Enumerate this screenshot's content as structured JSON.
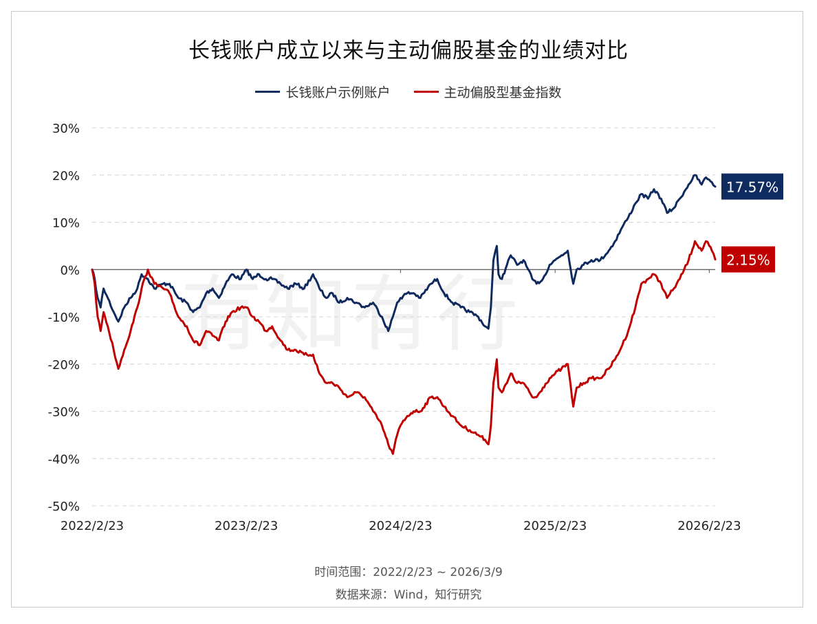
{
  "title": "长钱账户成立以来与主动偏股基金的业绩对比",
  "legend": [
    {
      "label": "长钱账户示例账户",
      "color": "#0f2a5e"
    },
    {
      "label": "主动偏股型基金指数",
      "color": "#c00000"
    }
  ],
  "footer": {
    "range": "时间范围：2022/2/23 ~ 2026/3/9",
    "source": "数据来源：Wind，知行研究"
  },
  "watermark": "有知有行",
  "chart_data": {
    "type": "line",
    "x_start": "2022/2/23",
    "x_end": "2026/3/9",
    "xticks": [
      "2022/2/23",
      "2023/2/23",
      "2024/2/23",
      "2025/2/23",
      "2026/2/23"
    ],
    "yticks": [
      "30%",
      "20%",
      "10%",
      "0%",
      "-10%",
      "-20%",
      "-30%",
      "-40%",
      "-50%"
    ],
    "ylim": [
      -50,
      30
    ],
    "grid": true,
    "legend_position": "top",
    "end_labels": [
      {
        "text": "17.57%",
        "value": 17.57,
        "series": 0
      },
      {
        "text": "2.15%",
        "value": 2.15,
        "series": 1
      }
    ],
    "series": [
      {
        "name": "长钱账户示例账户",
        "color": "#0f2a5e",
        "points": [
          [
            "2022/2/23",
            0
          ],
          [
            "2022/3/1",
            -2
          ],
          [
            "2022/3/8",
            -6
          ],
          [
            "2022/3/15",
            -8
          ],
          [
            "2022/3/22",
            -4
          ],
          [
            "2022/4/1",
            -6
          ],
          [
            "2022/4/15",
            -9
          ],
          [
            "2022/4/26",
            -11
          ],
          [
            "2022/5/10",
            -8
          ],
          [
            "2022/5/25",
            -6
          ],
          [
            "2022/6/10",
            -4
          ],
          [
            "2022/6/20",
            -1
          ],
          [
            "2022/7/5",
            -2
          ],
          [
            "2022/7/20",
            -4
          ],
          [
            "2022/8/10",
            -3
          ],
          [
            "2022/8/25",
            -3
          ],
          [
            "2022/9/15",
            -6
          ],
          [
            "2022/10/5",
            -7
          ],
          [
            "2022/10/20",
            -9
          ],
          [
            "2022/11/5",
            -8
          ],
          [
            "2022/11/20",
            -5
          ],
          [
            "2022/12/5",
            -4
          ],
          [
            "2022/12/20",
            -6
          ],
          [
            "2023/1/5",
            -3
          ],
          [
            "2023/1/20",
            -1
          ],
          [
            "2023/2/10",
            -2
          ],
          [
            "2023/2/23",
            0
          ],
          [
            "2023/3/10",
            -2
          ],
          [
            "2023/3/25",
            -1
          ],
          [
            "2023/4/10",
            -2
          ],
          [
            "2023/4/25",
            -2
          ],
          [
            "2023/5/15",
            -3
          ],
          [
            "2023/6/1",
            -4
          ],
          [
            "2023/6/20",
            -3
          ],
          [
            "2023/7/10",
            -4
          ],
          [
            "2023/7/31",
            -1
          ],
          [
            "2023/8/15",
            -4
          ],
          [
            "2023/8/31",
            -6
          ],
          [
            "2023/9/15",
            -5
          ],
          [
            "2023/10/1",
            -7
          ],
          [
            "2023/10/20",
            -6
          ],
          [
            "2023/11/10",
            -7
          ],
          [
            "2023/11/30",
            -8
          ],
          [
            "2023/12/20",
            -7
          ],
          [
            "2024/1/10",
            -10
          ],
          [
            "2024/1/25",
            -13
          ],
          [
            "2024/2/5",
            -10
          ],
          [
            "2024/2/15",
            -7
          ],
          [
            "2024/2/23",
            -6
          ],
          [
            "2024/3/10",
            -5
          ],
          [
            "2024/3/25",
            -5
          ],
          [
            "2024/4/10",
            -6
          ],
          [
            "2024/5/5",
            -3
          ],
          [
            "2024/5/20",
            -2
          ],
          [
            "2024/6/5",
            -5
          ],
          [
            "2024/6/25",
            -7
          ],
          [
            "2024/7/15",
            -8
          ],
          [
            "2024/8/5",
            -9
          ],
          [
            "2024/8/25",
            -10
          ],
          [
            "2024/9/10",
            -12
          ],
          [
            "2024/9/18",
            -12.5
          ],
          [
            "2024/9/24",
            -8
          ],
          [
            "2024/9/30",
            2
          ],
          [
            "2024/10/8",
            5
          ],
          [
            "2024/10/12",
            -1
          ],
          [
            "2024/10/20",
            -2
          ],
          [
            "2024/11/1",
            1
          ],
          [
            "2024/11/10",
            3
          ],
          [
            "2024/11/25",
            1
          ],
          [
            "2024/12/10",
            2
          ],
          [
            "2024/12/31",
            -2
          ],
          [
            "2025/1/10",
            -3
          ],
          [
            "2025/1/25",
            -2
          ],
          [
            "2025/2/10",
            1
          ],
          [
            "2025/2/23",
            2
          ],
          [
            "2025/3/10",
            3
          ],
          [
            "2025/3/25",
            4
          ],
          [
            "2025/4/7",
            -3
          ],
          [
            "2025/4/15",
            0
          ],
          [
            "2025/5/1",
            1
          ],
          [
            "2025/5/20",
            2
          ],
          [
            "2025/6/10",
            2
          ],
          [
            "2025/6/30",
            4
          ],
          [
            "2025/7/15",
            6
          ],
          [
            "2025/8/1",
            9
          ],
          [
            "2025/8/15",
            11
          ],
          [
            "2025/9/1",
            14
          ],
          [
            "2025/9/15",
            16
          ],
          [
            "2025/10/1",
            15
          ],
          [
            "2025/10/15",
            17
          ],
          [
            "2025/11/1",
            15
          ],
          [
            "2025/11/15",
            12
          ],
          [
            "2025/12/1",
            13
          ],
          [
            "2025/12/15",
            15
          ],
          [
            "2026/1/5",
            18
          ],
          [
            "2026/1/20",
            20
          ],
          [
            "2026/2/5",
            18
          ],
          [
            "2026/2/15",
            19.5
          ],
          [
            "2026/2/23",
            19
          ],
          [
            "2026/3/1",
            18.5
          ],
          [
            "2026/3/9",
            17.57
          ]
        ]
      },
      {
        "name": "主动偏股型基金指数",
        "color": "#c00000",
        "points": [
          [
            "2022/2/23",
            0
          ],
          [
            "2022/3/1",
            -3
          ],
          [
            "2022/3/8",
            -10
          ],
          [
            "2022/3/15",
            -13
          ],
          [
            "2022/3/22",
            -9
          ],
          [
            "2022/4/1",
            -12
          ],
          [
            "2022/4/15",
            -17
          ],
          [
            "2022/4/26",
            -21
          ],
          [
            "2022/5/10",
            -17
          ],
          [
            "2022/5/25",
            -13
          ],
          [
            "2022/6/10",
            -8
          ],
          [
            "2022/6/20",
            -4
          ],
          [
            "2022/7/5",
            0
          ],
          [
            "2022/7/20",
            -3
          ],
          [
            "2022/8/10",
            -4
          ],
          [
            "2022/8/25",
            -5
          ],
          [
            "2022/9/15",
            -10
          ],
          [
            "2022/10/5",
            -12
          ],
          [
            "2022/10/20",
            -15
          ],
          [
            "2022/11/5",
            -16
          ],
          [
            "2022/11/20",
            -13
          ],
          [
            "2022/12/5",
            -14
          ],
          [
            "2022/12/20",
            -15
          ],
          [
            "2023/1/5",
            -11
          ],
          [
            "2023/1/20",
            -9
          ],
          [
            "2023/2/10",
            -8
          ],
          [
            "2023/2/23",
            -8
          ],
          [
            "2023/3/10",
            -10
          ],
          [
            "2023/3/25",
            -11
          ],
          [
            "2023/4/10",
            -13
          ],
          [
            "2023/4/25",
            -12
          ],
          [
            "2023/5/15",
            -15
          ],
          [
            "2023/6/1",
            -17
          ],
          [
            "2023/6/20",
            -17
          ],
          [
            "2023/7/10",
            -18
          ],
          [
            "2023/7/31",
            -18
          ],
          [
            "2023/8/15",
            -22
          ],
          [
            "2023/8/31",
            -24
          ],
          [
            "2023/9/15",
            -24
          ],
          [
            "2023/10/1",
            -25
          ],
          [
            "2023/10/20",
            -27
          ],
          [
            "2023/11/10",
            -26
          ],
          [
            "2023/11/30",
            -27
          ],
          [
            "2023/12/20",
            -30
          ],
          [
            "2024/1/10",
            -33
          ],
          [
            "2024/1/25",
            -37
          ],
          [
            "2024/2/5",
            -39
          ],
          [
            "2024/2/15",
            -35
          ],
          [
            "2024/2/23",
            -33
          ],
          [
            "2024/3/10",
            -31
          ],
          [
            "2024/3/25",
            -30
          ],
          [
            "2024/4/10",
            -30
          ],
          [
            "2024/5/5",
            -27
          ],
          [
            "2024/5/20",
            -27
          ],
          [
            "2024/6/5",
            -29
          ],
          [
            "2024/6/25",
            -31
          ],
          [
            "2024/7/15",
            -33
          ],
          [
            "2024/8/5",
            -34
          ],
          [
            "2024/8/25",
            -35
          ],
          [
            "2024/9/10",
            -36
          ],
          [
            "2024/9/18",
            -37
          ],
          [
            "2024/9/24",
            -33
          ],
          [
            "2024/9/30",
            -24
          ],
          [
            "2024/10/8",
            -19
          ],
          [
            "2024/10/12",
            -25
          ],
          [
            "2024/10/20",
            -26
          ],
          [
            "2024/11/1",
            -24
          ],
          [
            "2024/11/10",
            -22
          ],
          [
            "2024/11/25",
            -24
          ],
          [
            "2024/12/10",
            -24
          ],
          [
            "2024/12/31",
            -27
          ],
          [
            "2025/1/10",
            -27
          ],
          [
            "2025/1/25",
            -25
          ],
          [
            "2025/2/10",
            -23
          ],
          [
            "2025/2/23",
            -22
          ],
          [
            "2025/3/10",
            -21
          ],
          [
            "2025/3/25",
            -20
          ],
          [
            "2025/4/7",
            -29
          ],
          [
            "2025/4/15",
            -25
          ],
          [
            "2025/5/1",
            -24
          ],
          [
            "2025/5/20",
            -23
          ],
          [
            "2025/6/10",
            -23
          ],
          [
            "2025/6/30",
            -21
          ],
          [
            "2025/7/15",
            -19
          ],
          [
            "2025/8/1",
            -16
          ],
          [
            "2025/8/15",
            -13
          ],
          [
            "2025/9/1",
            -8
          ],
          [
            "2025/9/15",
            -3
          ],
          [
            "2025/10/1",
            -2
          ],
          [
            "2025/10/15",
            -1
          ],
          [
            "2025/11/1",
            -3
          ],
          [
            "2025/11/15",
            -6
          ],
          [
            "2025/12/1",
            -4
          ],
          [
            "2025/12/15",
            -2
          ],
          [
            "2026/1/5",
            2
          ],
          [
            "2026/1/20",
            6
          ],
          [
            "2026/2/5",
            4
          ],
          [
            "2026/2/15",
            6
          ],
          [
            "2026/2/23",
            5
          ],
          [
            "2026/3/1",
            4
          ],
          [
            "2026/3/9",
            2.15
          ]
        ]
      }
    ]
  }
}
